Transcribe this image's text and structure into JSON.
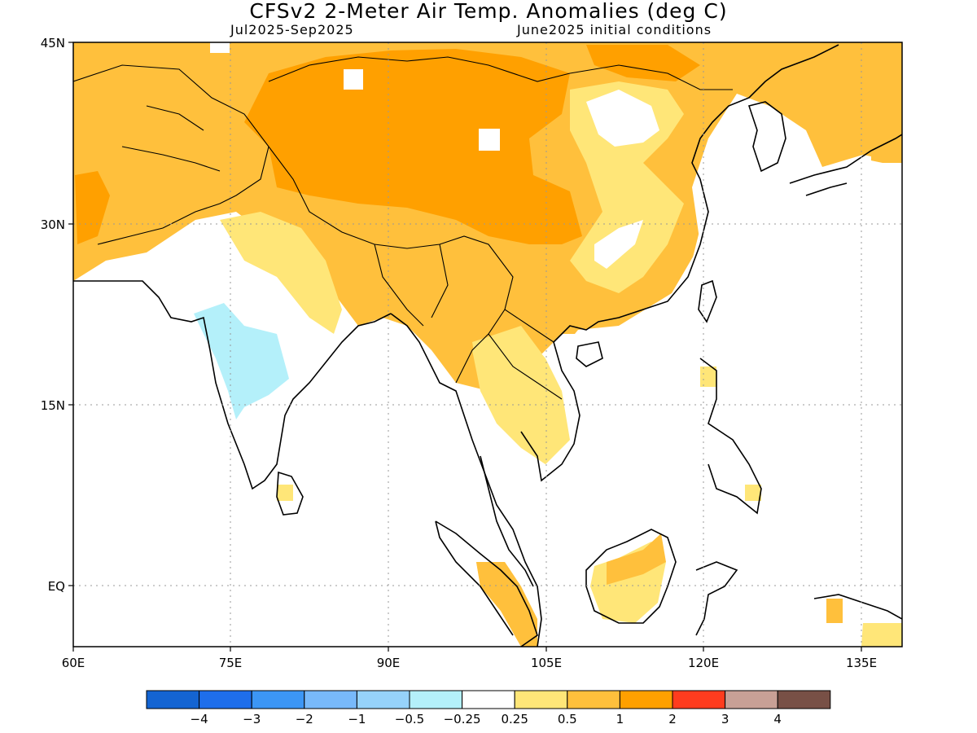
{
  "title": "CFSv2 2-Meter Air Temp. Anomalies (deg C)",
  "subtitle_left": "Jul2025-Sep2025",
  "subtitle_right": "June2025 initial conditions",
  "lat_labels": [
    "45N",
    "30N",
    "15N",
    "EQ"
  ],
  "lon_labels": [
    "60E",
    "75E",
    "90E",
    "105E",
    "120E",
    "135E"
  ],
  "colorbar": {
    "colors": [
      "#1464d2",
      "#1e6eeb",
      "#3c96f5",
      "#78b9fa",
      "#96d2fa",
      "#b4f0fa",
      "#ffffff",
      "#ffe678",
      "#ffc03c",
      "#ffa000",
      "#ff3c1e",
      "#c8a096",
      "#785046"
    ],
    "labels": [
      "-4",
      "-3",
      "-2",
      "-1",
      "-0.5",
      "-0.25",
      "0.25",
      "0.5",
      "1",
      "2",
      "3",
      "4"
    ]
  },
  "legend_colors": {
    "c_neg1": "#b4f0fa",
    "c_p05": "#ffe678",
    "c_p1": "#ffc03c",
    "c_p2": "#ffa000"
  }
}
